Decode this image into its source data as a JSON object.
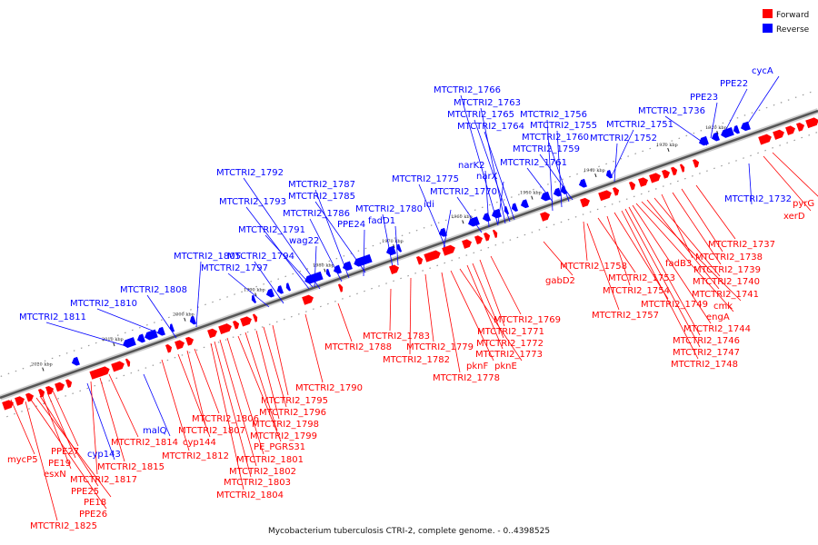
{
  "caption": "Mycobacterium tuberculosis CTRI-2, complete genome. - 0..4398525",
  "legend": {
    "forward": {
      "label": "Forward",
      "color": "#ff0000"
    },
    "reverse": {
      "label": "Reverse",
      "color": "#0000ff"
    }
  },
  "colors": {
    "forward": "#ff0000",
    "reverse": "#0000ff",
    "backbone": "#888888"
  },
  "scale_ticks": [
    "1920 kbp",
    "1930 kbp",
    "1940 kbp",
    "1950 kbp",
    "1960 kbp",
    "1970 kbp",
    "1980 kbp",
    "1990 kbp",
    "2000 kbp",
    "2010 kbp",
    "2020 kbp"
  ],
  "reverse_labels": [
    "MTCTRI2_1766",
    "MTCTRI2_1763",
    "MTCTRI2_1765",
    "MTCTRI2_1756",
    "MTCTRI2_1764",
    "MTCTRI2_1755",
    "MTCTRI2_1760",
    "MTCTRI2_1759",
    "MTCTRI2_1751",
    "MTCTRI2_1752",
    "MTCTRI2_1736",
    "PPE23",
    "PPE22",
    "cycA",
    "MTCTRI2_1761",
    "narK2",
    "narX",
    "MTCTRI2_1775",
    "MTCTRI2_1770",
    "idi",
    "MTCTRI2_1792",
    "MTCTRI2_1787",
    "MTCTRI2_1785",
    "MTCTRI2_1793",
    "MTCTRI2_1786",
    "MTCTRI2_1780",
    "PPE24",
    "fadD1",
    "MTCTRI2_1791",
    "wag22",
    "MTCTRI2_1794",
    "MTCTRI2_1797",
    "MTCTRI2_1805",
    "MTCTRI2_1808",
    "MTCTRI2_1810",
    "MTCTRI2_1811",
    "MTCTRI2_1732",
    "malQ",
    "cyp143"
  ],
  "forward_labels": [
    "pyrG",
    "xerD",
    "MTCTRI2_1737",
    "MTCTRI2_1738",
    "fadB3",
    "MTCTRI2_1739",
    "MTCTRI2_1740",
    "MTCTRI2_1741",
    "cmk",
    "engA",
    "MTCTRI2_1744",
    "MTCTRI2_1746",
    "MTCTRI2_1747",
    "MTCTRI2_1748",
    "MTCTRI2_1758",
    "MTCTRI2_1753",
    "MTCTRI2_1754",
    "MTCTRI2_1749",
    "MTCTRI2_1757",
    "gabD2",
    "MTCTRI2_1769",
    "MTCTRI2_1771",
    "MTCTRI2_1772",
    "MTCTRI2_1773",
    "pknF",
    "pknE",
    "MTCTRI2_1778",
    "MTCTRI2_1779",
    "MTCTRI2_1782",
    "MTCTRI2_1783",
    "MTCTRI2_1788",
    "MTCTRI2_1790",
    "MTCTRI2_1795",
    "MTCTRI2_1796",
    "MTCTRI2_1798",
    "MTCTRI2_1799",
    "PE_PGRS31",
    "MTCTRI2_1801",
    "MTCTRI2_1802",
    "MTCTRI2_1803",
    "MTCTRI2_1804",
    "MTCTRI2_1806",
    "MTCTRI2_1807",
    "cyp144",
    "MTCTRI2_1812",
    "MTCTRI2_1814",
    "MTCTRI2_1815",
    "MTCTRI2_1817",
    "mycP5",
    "PPE27",
    "PE19",
    "esxN",
    "PPE25",
    "PE18",
    "PPE26",
    "MTCTRI2_1825"
  ]
}
